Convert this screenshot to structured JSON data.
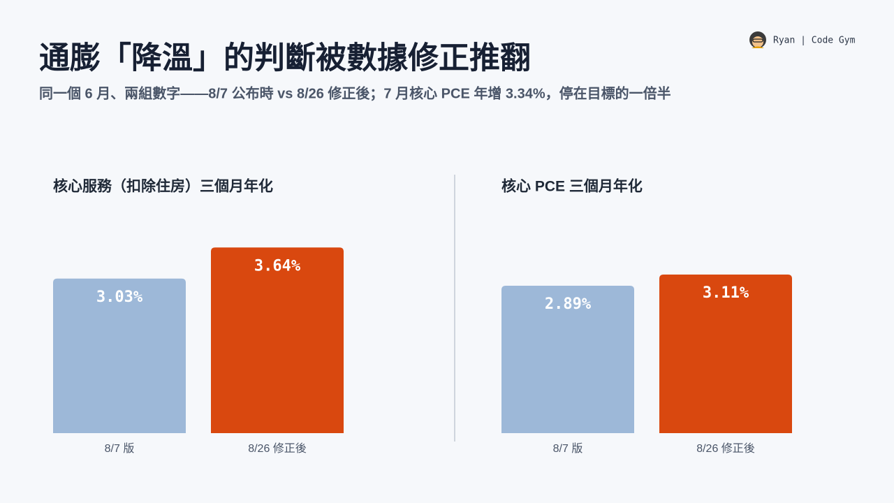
{
  "header": {
    "title": "通膨「降溫」的判斷被數據修正推翻",
    "subtitle": "同一個 6 月、兩組數字——8/7 公布時 vs 8/26 修正後；7 月核心 PCE 年增 3.34%，停在目標的一倍半",
    "brand": "Ryan | Code Gym"
  },
  "chart_data": [
    {
      "type": "bar",
      "title": "核心服務（扣除住房）三個月年化",
      "categories": [
        "8/7 版",
        "8/26 修正後"
      ],
      "values": [
        3.03,
        3.64
      ],
      "value_labels": [
        "3.03%",
        "3.64%"
      ],
      "colors": [
        "#9db8d8",
        "#d9480f"
      ]
    },
    {
      "type": "bar",
      "title": "核心 PCE 三個月年化",
      "categories": [
        "8/7 版",
        "8/26 修正後"
      ],
      "values": [
        2.89,
        3.11
      ],
      "value_labels": [
        "2.89%",
        "3.11%"
      ],
      "colors": [
        "#9db8d8",
        "#d9480f"
      ]
    }
  ]
}
